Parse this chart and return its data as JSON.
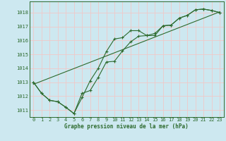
{
  "title": "Graphe pression niveau de la mer (hPa)",
  "bg_color": "#cde8f0",
  "grid_color": "#f0c8c8",
  "line_color": "#2d6a2d",
  "text_color": "#2d6a2d",
  "xlim": [
    -0.5,
    23.5
  ],
  "ylim": [
    1010.5,
    1018.8
  ],
  "yticks": [
    1011,
    1012,
    1013,
    1014,
    1015,
    1016,
    1017,
    1018
  ],
  "xticks": [
    0,
    1,
    2,
    3,
    4,
    5,
    6,
    7,
    8,
    9,
    10,
    11,
    12,
    13,
    14,
    15,
    16,
    17,
    18,
    19,
    20,
    21,
    22,
    23
  ],
  "series1_x": [
    0,
    1,
    2,
    3,
    4,
    5,
    6,
    7,
    8,
    9,
    10,
    11,
    12,
    13,
    14,
    15,
    16,
    17,
    18,
    19,
    20,
    21,
    22,
    23
  ],
  "series1_y": [
    1013.0,
    1012.2,
    1011.7,
    1011.6,
    1011.2,
    1010.75,
    1011.9,
    1013.1,
    1014.0,
    1015.2,
    1016.1,
    1016.2,
    1016.7,
    1016.7,
    1016.35,
    1016.35,
    1017.05,
    1017.1,
    1017.6,
    1017.8,
    1018.2,
    1018.25,
    1018.15,
    1018.0
  ],
  "series2_x": [
    0,
    1,
    2,
    3,
    4,
    5,
    6,
    7,
    8,
    9,
    10,
    11,
    12,
    13,
    14,
    15,
    16,
    17,
    18,
    19,
    20,
    21,
    22,
    23
  ],
  "series2_y": [
    1013.0,
    1012.2,
    1011.7,
    1011.6,
    1011.2,
    1010.75,
    1012.2,
    1012.4,
    1013.35,
    1014.45,
    1014.5,
    1015.25,
    1015.9,
    1016.3,
    1016.35,
    1016.5,
    1017.05,
    1017.1,
    1017.6,
    1017.8,
    1018.2,
    1018.25,
    1018.15,
    1018.0
  ],
  "trend_x": [
    0,
    23
  ],
  "trend_y": [
    1012.85,
    1018.05
  ]
}
